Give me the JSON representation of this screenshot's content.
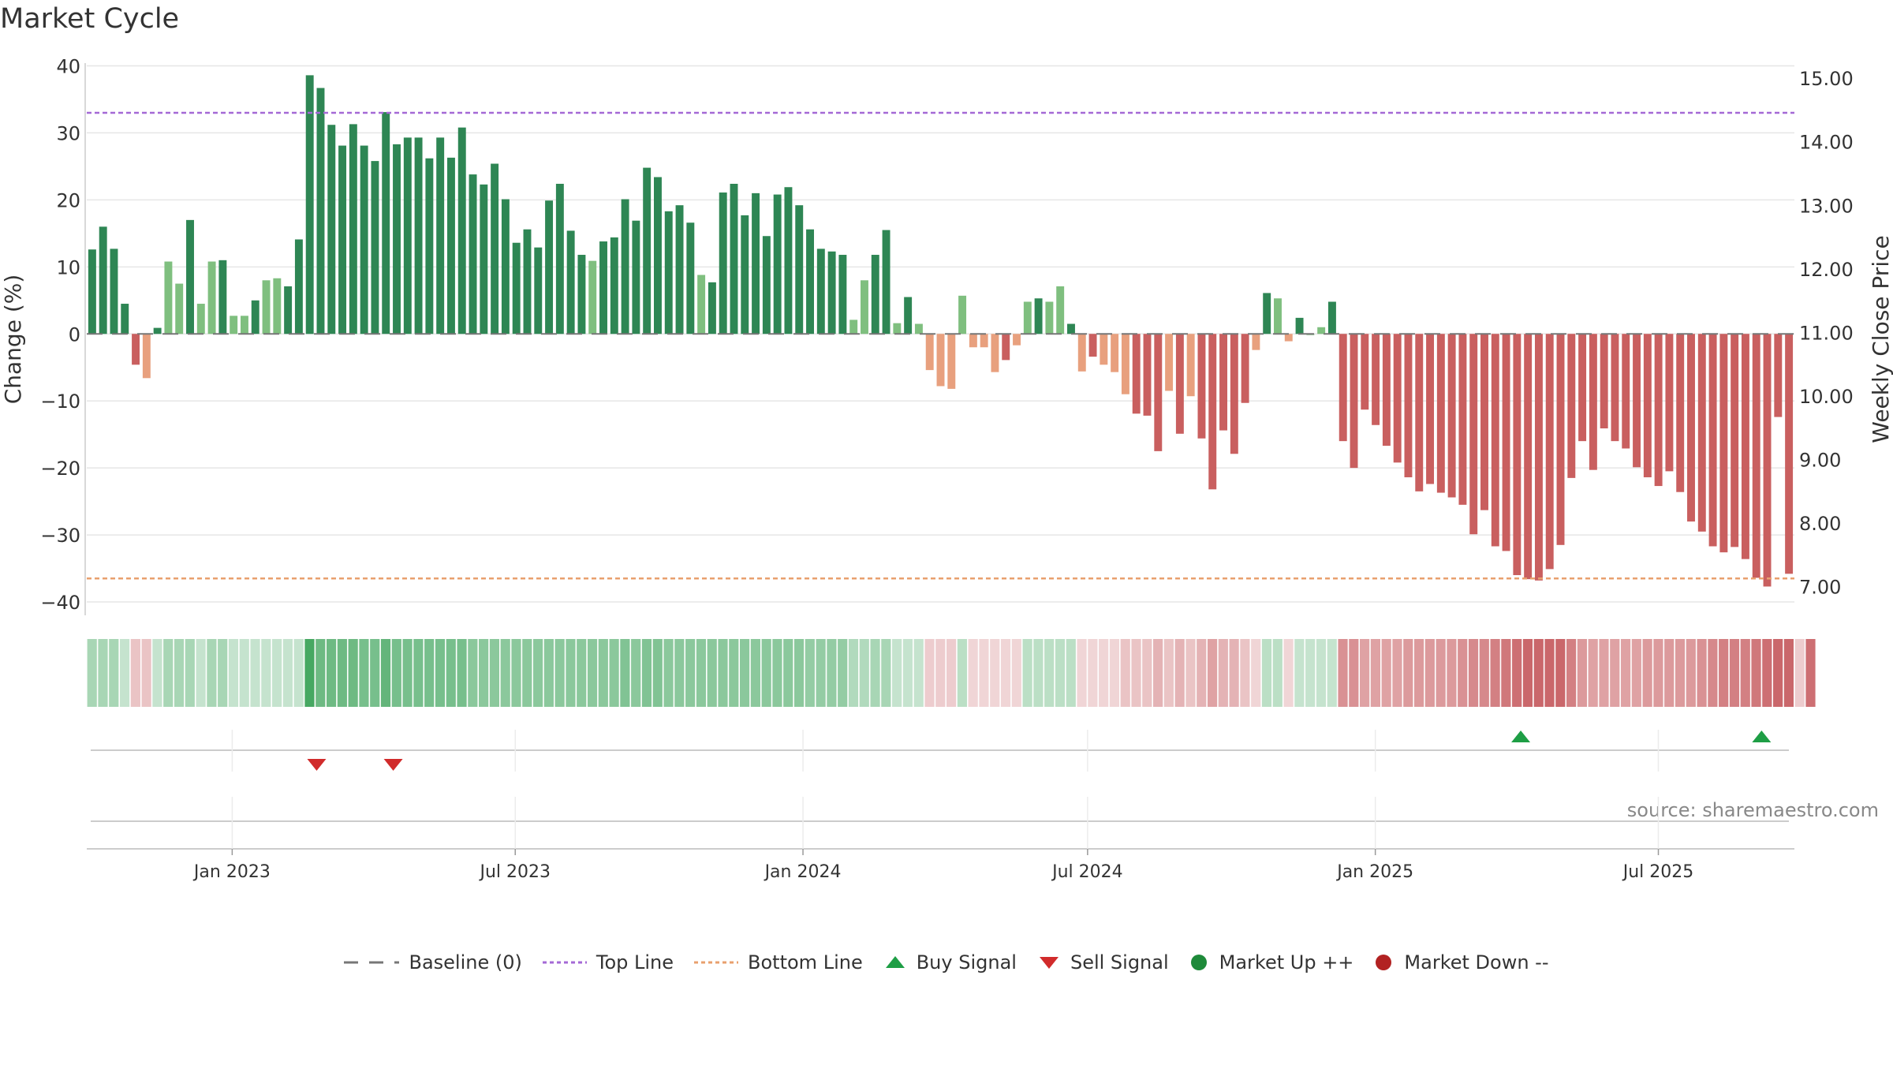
{
  "title": "Market Cycle",
  "source": "source: sharemaestro.com",
  "colors": {
    "up_dark": "#2e8654",
    "up_light": "#7fbf7f",
    "down_dark": "#c95f5f",
    "down_light": "#e8a07e",
    "top_line": "#a469d6",
    "bottom_line": "#e8a06e",
    "baseline": "#777777",
    "buy": "#1e9e45",
    "sell": "#d12b2b",
    "market_up": "#1e8a3a",
    "market_down": "#b22222",
    "grid": "#e6e6e6"
  },
  "legend": [
    {
      "label": "Baseline (0)",
      "icon": "dash-line"
    },
    {
      "label": "Top Line",
      "icon": "dotted-purple-line"
    },
    {
      "label": "Bottom Line",
      "icon": "dotted-orange-line"
    },
    {
      "label": "Buy Signal",
      "icon": "triangle-up"
    },
    {
      "label": "Sell Signal",
      "icon": "triangle-down"
    },
    {
      "label": "Market Up ++",
      "icon": "green-dot"
    },
    {
      "label": "Market Down --",
      "icon": "red-dot"
    }
  ],
  "chart_data": {
    "type": "bar",
    "ylabel": "Change (%)",
    "y2label": "Weekly Close Price",
    "ylim": [
      -42,
      41
    ],
    "y2lim": [
      6.55,
      15.3
    ],
    "yticks": [
      40,
      30,
      20,
      10,
      0,
      -10,
      -20,
      -30,
      -40
    ],
    "y2ticks": [
      "15.00",
      "14.00",
      "13.00",
      "12.00",
      "11.00",
      "10.00",
      "9.00",
      "8.00",
      "7.00"
    ],
    "y2tick_values": [
      15,
      14,
      13,
      12,
      11,
      10,
      9,
      8,
      7
    ],
    "x_start": "2022-09-30",
    "x_end": "2025-09-26",
    "xticks": [
      {
        "label": "Jan 2023",
        "date": "2023-01-01"
      },
      {
        "label": "Jul 2023",
        "date": "2023-07-01"
      },
      {
        "label": "Jan 2024",
        "date": "2024-01-01"
      },
      {
        "label": "Jul 2024",
        "date": "2024-07-01"
      },
      {
        "label": "Jan 2025",
        "date": "2025-01-01"
      },
      {
        "label": "Jul 2025",
        "date": "2025-07-01"
      }
    ],
    "top_line": 33,
    "bottom_line": -36.5,
    "values": [
      12.6,
      16,
      12.7,
      4.5,
      -4.6,
      -6.6,
      0.9,
      10.8,
      7.5,
      17,
      4.5,
      10.8,
      11,
      2.7,
      2.7,
      5,
      8,
      8.3,
      7.1,
      14.1,
      38.6,
      36.7,
      31.2,
      28.1,
      31.3,
      28.1,
      25.8,
      33.1,
      28.3,
      29.3,
      29.3,
      26.2,
      29.3,
      26.3,
      30.8,
      23.8,
      22.3,
      25.4,
      20.1,
      13.6,
      15.6,
      12.9,
      19.9,
      22.4,
      15.4,
      11.8,
      10.9,
      13.8,
      14.4,
      20.1,
      16.9,
      24.8,
      23.4,
      18.3,
      19.2,
      16.6,
      8.8,
      7.7,
      21.1,
      22.4,
      17.7,
      21,
      14.6,
      20.8,
      21.9,
      19.2,
      15.6,
      12.7,
      12.3,
      11.8,
      2.1,
      8,
      11.8,
      15.5,
      1.6,
      5.5,
      1.5,
      -5.4,
      -7.8,
      -8.2,
      5.7,
      -2,
      -2,
      -5.7,
      -3.9,
      -1.7,
      4.8,
      5.3,
      4.8,
      7.1,
      1.5,
      -5.6,
      -3.4,
      -4.6,
      -5.7,
      -9,
      -11.9,
      -12.2,
      -17.5,
      -8.5,
      -14.9,
      -9.3,
      -15.6,
      -23.2,
      -14.4,
      -17.9,
      -10.3,
      -2.4,
      6.1,
      5.3,
      -1.1,
      2.4,
      0,
      1,
      4.8,
      -16,
      -20,
      -11.3,
      -13.6,
      -16.7,
      -19.2,
      -21.4,
      -23.5,
      -22.4,
      -23.7,
      -24.4,
      -25.5,
      -29.9,
      -26.3,
      -31.7,
      -32.4,
      -36,
      -36.6,
      -36.8,
      -35.1,
      -31.5,
      -21.5,
      -16,
      -20.3,
      -14.1,
      -16,
      -17.1,
      -19.9,
      -21.4,
      -22.7,
      -20.5,
      -23.6,
      -28,
      -29.5,
      -31.7,
      -32.6,
      -31.8,
      -33.6,
      -36.4,
      -37.7,
      -12.4,
      -35.8
    ],
    "price": [],
    "heat_strip_shades": [
      0.45,
      0.45,
      0.45,
      0.3,
      0.35,
      0.35,
      0.3,
      0.45,
      0.45,
      0.45,
      0.3,
      0.45,
      0.45,
      0.3,
      0.3,
      0.3,
      0.3,
      0.3,
      0.3,
      0.3,
      0.95,
      0.75,
      0.75,
      0.75,
      0.75,
      0.7,
      0.7,
      0.8,
      0.7,
      0.7,
      0.7,
      0.7,
      0.7,
      0.7,
      0.7,
      0.6,
      0.6,
      0.6,
      0.6,
      0.6,
      0.6,
      0.6,
      0.6,
      0.6,
      0.6,
      0.6,
      0.6,
      0.6,
      0.6,
      0.65,
      0.6,
      0.65,
      0.65,
      0.6,
      0.6,
      0.6,
      0.6,
      0.6,
      0.6,
      0.6,
      0.6,
      0.6,
      0.6,
      0.6,
      0.6,
      0.6,
      0.55,
      0.55,
      0.55,
      0.55,
      0.4,
      0.4,
      0.45,
      0.45,
      0.3,
      0.3,
      0.3,
      0.3,
      0.3,
      0.3,
      0.35,
      0.25,
      0.25,
      0.25,
      0.25,
      0.25,
      0.35,
      0.35,
      0.35,
      0.35,
      0.35,
      0.25,
      0.25,
      0.25,
      0.25,
      0.35,
      0.35,
      0.35,
      0.45,
      0.35,
      0.45,
      0.35,
      0.45,
      0.55,
      0.45,
      0.45,
      0.35,
      0.25,
      0.35,
      0.35,
      0.25,
      0.3,
      0.3,
      0.3,
      0.3,
      0.65,
      0.65,
      0.55,
      0.55,
      0.55,
      0.55,
      0.6,
      0.6,
      0.6,
      0.6,
      0.6,
      0.65,
      0.7,
      0.7,
      0.75,
      0.8,
      0.85,
      0.9,
      0.9,
      0.9,
      0.9,
      0.75,
      0.6,
      0.55,
      0.55,
      0.55,
      0.55,
      0.55,
      0.6,
      0.6,
      0.6,
      0.6,
      0.6,
      0.65,
      0.7,
      0.75,
      0.75,
      0.75,
      0.8,
      0.85,
      0.9,
      0.9,
      0.3,
      0.85
    ],
    "buy_signals": [
      "2025-04-04",
      "2025-09-05"
    ],
    "sell_signals": [
      "2023-02-24",
      "2023-04-14"
    ]
  }
}
